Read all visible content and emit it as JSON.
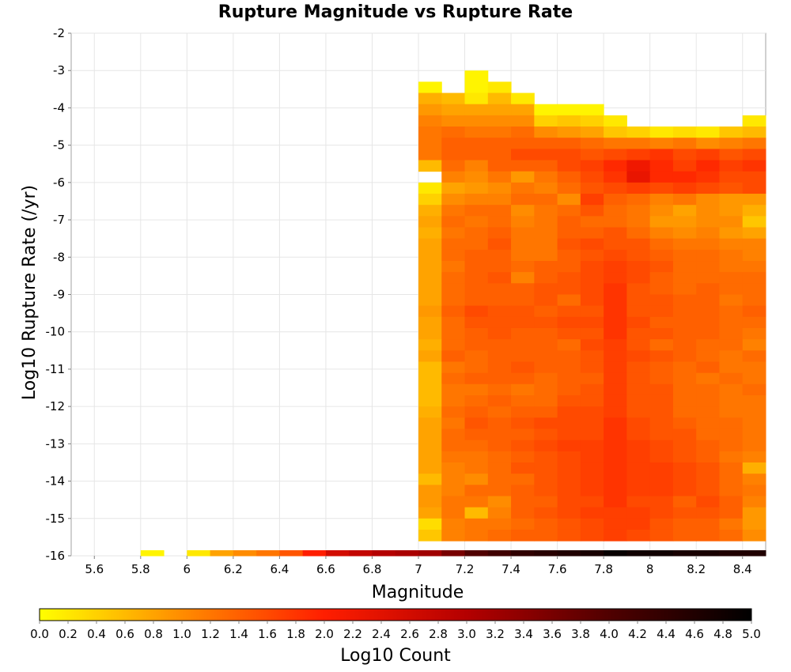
{
  "chart_data": {
    "type": "heatmap",
    "title": "Rupture Magnitude vs Rupture Rate",
    "xlabel": "Magnitude",
    "ylabel": "Log10 Rupture Rate (/yr)",
    "xlim": [
      5.5,
      8.5
    ],
    "ylim": [
      -16,
      -2
    ],
    "x_ticks": [
      "5.6",
      "5.8",
      "6",
      "6.2",
      "6.4",
      "6.6",
      "6.8",
      "7",
      "7.2",
      "7.4",
      "7.6",
      "7.8",
      "8",
      "8.2",
      "8.4"
    ],
    "y_ticks": [
      "-2",
      "-3",
      "-4",
      "-5",
      "-6",
      "-7",
      "-8",
      "-9",
      "-10",
      "-11",
      "-12",
      "-13",
      "-14",
      "-15",
      "-16"
    ],
    "grid": true,
    "colorbar": {
      "label": "Log10 Count",
      "range": [
        0.0,
        5.0
      ],
      "position": "bottom",
      "ticks": [
        "0.0",
        "0.2",
        "0.4",
        "0.6",
        "0.8",
        "1.0",
        "1.2",
        "1.4",
        "1.6",
        "1.8",
        "2.0",
        "2.2",
        "2.4",
        "2.6",
        "2.8",
        "3.0",
        "3.2",
        "3.4",
        "3.6",
        "3.8",
        "4.0",
        "4.2",
        "4.4",
        "4.6",
        "4.8",
        "5.0"
      ],
      "colors": [
        "#ffff00",
        "#ff8c00",
        "#ff1e00",
        "#b40000",
        "#500000",
        "#000000"
      ]
    },
    "bin_width_x": 0.1,
    "bin_width_y": 0.3,
    "bottom_row": {
      "y": -16,
      "x": [
        5.8,
        5.9,
        6.0,
        6.1,
        6.2,
        6.3,
        6.4,
        6.5,
        6.6,
        6.7,
        6.8,
        6.9,
        7.0,
        7.1,
        7.2,
        7.3,
        7.4,
        7.5,
        7.6,
        7.7,
        7.8,
        7.9,
        8.0,
        8.1,
        8.2,
        8.3,
        8.4
      ],
      "values": [
        0.1,
        null,
        0.2,
        0.8,
        1.0,
        1.2,
        1.5,
        2.0,
        2.6,
        2.8,
        3.0,
        3.1,
        3.2,
        3.6,
        4.0,
        4.2,
        4.4,
        4.5,
        4.6,
        4.7,
        4.9,
        4.8,
        4.8,
        4.7,
        4.7,
        4.6,
        4.6
      ]
    },
    "grid_cells": {
      "x": [
        7.0,
        7.1,
        7.2,
        7.3,
        7.4,
        7.5,
        7.6,
        7.7,
        7.8,
        7.9,
        8.0,
        8.1,
        8.2,
        8.3,
        8.4
      ],
      "rows": [
        {
          "y": -3.3,
          "values": [
            null,
            null,
            0.1,
            null,
            null,
            null,
            null,
            null,
            null,
            null,
            null,
            null,
            null,
            null,
            null
          ]
        },
        {
          "y": -3.6,
          "values": [
            0.1,
            null,
            0.1,
            0.2,
            null,
            null,
            null,
            null,
            null,
            null,
            null,
            null,
            null,
            null,
            null
          ]
        },
        {
          "y": -3.9,
          "values": [
            0.7,
            0.6,
            0.2,
            0.6,
            0.2,
            null,
            null,
            null,
            null,
            null,
            null,
            null,
            null,
            null,
            null
          ]
        },
        {
          "y": -4.2,
          "values": [
            0.9,
            0.8,
            0.8,
            0.8,
            0.8,
            0.1,
            0.1,
            0.1,
            null,
            null,
            null,
            null,
            null,
            null,
            null
          ]
        },
        {
          "y": -4.5,
          "values": [
            1.1,
            1.0,
            1.0,
            1.0,
            1.0,
            0.4,
            0.5,
            0.4,
            0.2,
            null,
            null,
            null,
            null,
            null,
            0.2
          ]
        },
        {
          "y": -4.8,
          "values": [
            1.2,
            1.3,
            1.2,
            1.2,
            1.3,
            1.0,
            0.9,
            0.8,
            0.5,
            0.4,
            0.2,
            0.3,
            0.2,
            0.5,
            0.6
          ]
        },
        {
          "y": -5.1,
          "values": [
            1.2,
            1.4,
            1.4,
            1.4,
            1.4,
            1.4,
            1.4,
            1.3,
            1.2,
            1.2,
            1.1,
            1.2,
            1.0,
            1.1,
            1.2
          ]
        },
        {
          "y": -5.4,
          "values": [
            1.2,
            1.4,
            1.4,
            1.4,
            1.6,
            1.6,
            1.6,
            1.5,
            1.6,
            1.7,
            1.8,
            1.6,
            1.7,
            1.5,
            1.6
          ]
        },
        {
          "y": -5.7,
          "values": [
            0.6,
            1.3,
            1.1,
            1.4,
            1.4,
            1.4,
            1.6,
            1.7,
            1.9,
            2.2,
            1.9,
            1.7,
            1.9,
            1.7,
            1.8
          ]
        },
        {
          "y": -6.0,
          "values": [
            null,
            1.1,
            1.0,
            1.2,
            0.9,
            1.2,
            1.4,
            1.6,
            1.8,
            2.3,
            1.9,
            1.9,
            1.8,
            1.6,
            1.6
          ]
        },
        {
          "y": -6.3,
          "values": [
            0.2,
            0.8,
            0.9,
            1.0,
            1.2,
            1.1,
            1.3,
            1.5,
            1.6,
            1.7,
            1.6,
            1.7,
            1.6,
            1.5,
            1.6
          ]
        },
        {
          "y": -6.6,
          "values": [
            0.4,
            1.0,
            1.1,
            1.1,
            1.3,
            1.3,
            1.0,
            1.7,
            1.4,
            1.3,
            1.1,
            1.2,
            1.0,
            0.9,
            0.9
          ]
        },
        {
          "y": -6.9,
          "values": [
            0.7,
            1.2,
            1.3,
            1.3,
            1.0,
            1.2,
            1.3,
            1.5,
            1.3,
            1.2,
            1.0,
            0.8,
            1.0,
            0.9,
            0.7
          ]
        },
        {
          "y": -7.2,
          "values": [
            0.8,
            1.3,
            1.2,
            1.3,
            1.1,
            1.2,
            1.4,
            1.3,
            1.3,
            1.2,
            0.9,
            0.9,
            1.0,
            1.0,
            0.5
          ]
        },
        {
          "y": -7.5,
          "values": [
            0.7,
            1.2,
            1.3,
            1.4,
            1.2,
            1.2,
            1.4,
            1.4,
            1.5,
            1.3,
            1.1,
            1.0,
            1.1,
            0.9,
            0.8
          ]
        },
        {
          "y": -7.8,
          "values": [
            0.8,
            1.3,
            1.3,
            1.5,
            1.2,
            1.2,
            1.5,
            1.6,
            1.5,
            1.5,
            1.3,
            1.2,
            1.2,
            1.1,
            1.1
          ]
        },
        {
          "y": -8.1,
          "values": [
            0.8,
            1.3,
            1.4,
            1.4,
            1.2,
            1.2,
            1.4,
            1.5,
            1.6,
            1.5,
            1.4,
            1.3,
            1.3,
            1.2,
            1.1
          ]
        },
        {
          "y": -8.4,
          "values": [
            0.8,
            1.2,
            1.4,
            1.4,
            1.3,
            1.4,
            1.4,
            1.6,
            1.7,
            1.6,
            1.5,
            1.3,
            1.3,
            1.2,
            1.2
          ]
        },
        {
          "y": -8.7,
          "values": [
            0.8,
            1.3,
            1.4,
            1.5,
            1.1,
            1.4,
            1.5,
            1.6,
            1.7,
            1.6,
            1.4,
            1.3,
            1.3,
            1.3,
            1.3
          ]
        },
        {
          "y": -9.0,
          "values": [
            0.8,
            1.3,
            1.4,
            1.4,
            1.4,
            1.5,
            1.5,
            1.6,
            1.8,
            1.5,
            1.4,
            1.3,
            1.4,
            1.3,
            1.3
          ]
        },
        {
          "y": -9.3,
          "values": [
            0.8,
            1.3,
            1.4,
            1.4,
            1.4,
            1.5,
            1.3,
            1.6,
            1.8,
            1.5,
            1.5,
            1.4,
            1.4,
            1.2,
            1.3
          ]
        },
        {
          "y": -9.6,
          "values": [
            0.9,
            1.4,
            1.6,
            1.5,
            1.5,
            1.4,
            1.5,
            1.5,
            1.8,
            1.5,
            1.5,
            1.4,
            1.4,
            1.3,
            1.4
          ]
        },
        {
          "y": -9.9,
          "values": [
            0.8,
            1.3,
            1.5,
            1.5,
            1.5,
            1.5,
            1.6,
            1.6,
            1.8,
            1.6,
            1.4,
            1.4,
            1.4,
            1.3,
            1.3
          ]
        },
        {
          "y": -10.2,
          "values": [
            0.8,
            1.3,
            1.4,
            1.5,
            1.4,
            1.4,
            1.5,
            1.5,
            1.8,
            1.5,
            1.5,
            1.4,
            1.4,
            1.3,
            1.2
          ]
        },
        {
          "y": -10.5,
          "values": [
            0.7,
            1.3,
            1.4,
            1.4,
            1.4,
            1.4,
            1.3,
            1.6,
            1.7,
            1.5,
            1.3,
            1.4,
            1.3,
            1.3,
            1.1
          ]
        },
        {
          "y": -10.8,
          "values": [
            0.8,
            1.4,
            1.3,
            1.4,
            1.4,
            1.4,
            1.4,
            1.5,
            1.7,
            1.6,
            1.5,
            1.4,
            1.3,
            1.2,
            1.3
          ]
        },
        {
          "y": -11.1,
          "values": [
            0.6,
            1.2,
            1.3,
            1.4,
            1.5,
            1.4,
            1.4,
            1.5,
            1.7,
            1.5,
            1.4,
            1.3,
            1.4,
            1.2,
            1.2
          ]
        },
        {
          "y": -11.4,
          "values": [
            0.6,
            1.3,
            1.4,
            1.4,
            1.4,
            1.3,
            1.4,
            1.4,
            1.7,
            1.5,
            1.4,
            1.3,
            1.2,
            1.3,
            1.2
          ]
        },
        {
          "y": -11.7,
          "values": [
            0.6,
            1.2,
            1.2,
            1.3,
            1.2,
            1.3,
            1.4,
            1.5,
            1.7,
            1.5,
            1.5,
            1.3,
            1.3,
            1.2,
            1.3
          ]
        },
        {
          "y": -12.0,
          "values": [
            0.6,
            1.2,
            1.3,
            1.4,
            1.3,
            1.3,
            1.5,
            1.5,
            1.7,
            1.5,
            1.5,
            1.3,
            1.3,
            1.2,
            1.2
          ]
        },
        {
          "y": -12.3,
          "values": [
            0.7,
            1.3,
            1.4,
            1.3,
            1.4,
            1.4,
            1.6,
            1.6,
            1.7,
            1.5,
            1.5,
            1.3,
            1.3,
            1.2,
            1.2
          ]
        },
        {
          "y": -12.6,
          "values": [
            0.8,
            1.2,
            1.5,
            1.4,
            1.5,
            1.6,
            1.6,
            1.6,
            1.8,
            1.6,
            1.5,
            1.4,
            1.3,
            1.3,
            1.2
          ]
        },
        {
          "y": -12.9,
          "values": [
            0.8,
            1.3,
            1.4,
            1.4,
            1.4,
            1.5,
            1.6,
            1.6,
            1.8,
            1.6,
            1.5,
            1.5,
            1.3,
            1.3,
            1.2
          ]
        },
        {
          "y": -13.2,
          "values": [
            0.8,
            1.3,
            1.3,
            1.4,
            1.5,
            1.6,
            1.7,
            1.7,
            1.8,
            1.7,
            1.6,
            1.5,
            1.4,
            1.3,
            1.2
          ]
        },
        {
          "y": -13.5,
          "values": [
            0.8,
            1.2,
            1.2,
            1.3,
            1.4,
            1.5,
            1.6,
            1.7,
            1.8,
            1.7,
            1.6,
            1.5,
            1.4,
            1.2,
            1.1
          ]
        },
        {
          "y": -13.8,
          "values": [
            0.8,
            1.1,
            1.2,
            1.3,
            1.5,
            1.5,
            1.6,
            1.7,
            1.8,
            1.7,
            1.7,
            1.6,
            1.5,
            1.3,
            0.7
          ]
        },
        {
          "y": -14.1,
          "values": [
            0.6,
            1.1,
            1.0,
            1.3,
            1.3,
            1.5,
            1.6,
            1.7,
            1.8,
            1.7,
            1.7,
            1.6,
            1.5,
            1.3,
            1.1
          ]
        },
        {
          "y": -14.4,
          "values": [
            0.9,
            1.1,
            1.3,
            1.3,
            1.4,
            1.5,
            1.6,
            1.7,
            1.8,
            1.7,
            1.7,
            1.6,
            1.5,
            1.3,
            1.2
          ]
        },
        {
          "y": -14.7,
          "values": [
            0.9,
            1.2,
            1.2,
            1.0,
            1.4,
            1.4,
            1.6,
            1.6,
            1.8,
            1.6,
            1.6,
            1.4,
            1.6,
            1.4,
            1.1
          ]
        },
        {
          "y": -15.0,
          "values": [
            0.8,
            1.2,
            0.6,
            1.1,
            1.4,
            1.5,
            1.6,
            1.7,
            1.7,
            1.7,
            1.6,
            1.5,
            1.5,
            1.4,
            0.9
          ]
        },
        {
          "y": -15.3,
          "values": [
            0.3,
            1.1,
            1.2,
            1.2,
            1.3,
            1.4,
            1.5,
            1.6,
            1.7,
            1.7,
            1.5,
            1.4,
            1.4,
            1.2,
            0.9
          ]
        },
        {
          "y": -15.6,
          "values": [
            0.5,
            1.1,
            1.2,
            1.3,
            1.4,
            1.4,
            1.5,
            1.6,
            1.7,
            1.6,
            1.5,
            1.4,
            1.4,
            1.3,
            1.0
          ]
        }
      ]
    }
  }
}
